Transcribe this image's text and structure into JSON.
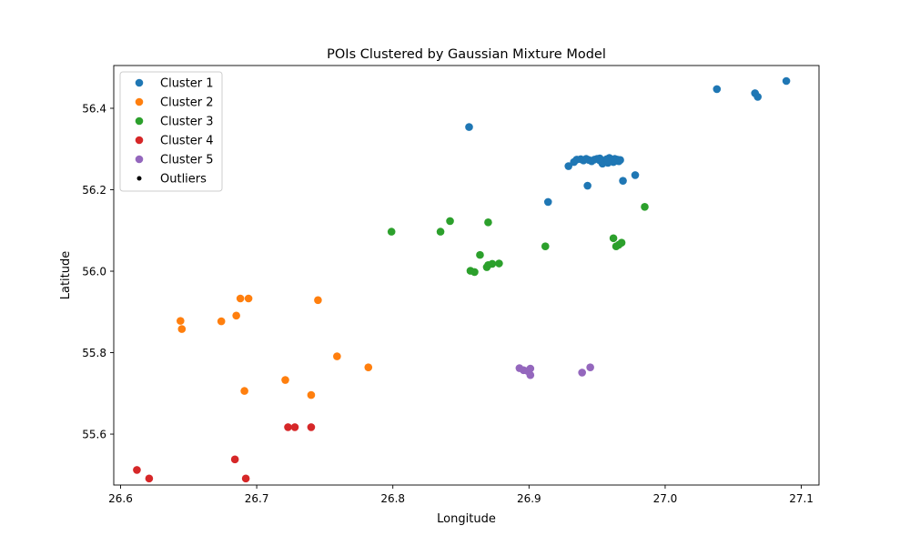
{
  "chart_data": {
    "type": "scatter",
    "title": "POIs Clustered by Gaussian Mixture Model",
    "xlabel": "Longitude",
    "ylabel": "Latitude",
    "xlim": [
      26.595,
      27.113
    ],
    "ylim": [
      55.475,
      56.505
    ],
    "xticks": [
      26.6,
      26.7,
      26.8,
      26.9,
      27.0,
      27.1
    ],
    "xtick_labels": [
      "26.6",
      "26.7",
      "26.8",
      "26.9",
      "27.0",
      "27.1"
    ],
    "yticks": [
      55.6,
      55.8,
      56.0,
      56.2,
      56.4
    ],
    "ytick_labels": [
      "55.6",
      "55.8",
      "56.0",
      "56.2",
      "56.4"
    ],
    "grid": false,
    "legend_position": "top-left",
    "series": [
      {
        "name": "Cluster 1",
        "color": "#1f77b4",
        "points": [
          [
            26.856,
            56.354
          ],
          [
            27.038,
            56.447
          ],
          [
            27.066,
            56.437
          ],
          [
            27.068,
            56.428
          ],
          [
            27.089,
            56.467
          ],
          [
            26.914,
            56.17
          ],
          [
            26.943,
            56.21
          ],
          [
            26.969,
            56.222
          ],
          [
            26.978,
            56.236
          ],
          [
            26.929,
            56.258
          ],
          [
            26.933,
            56.268
          ],
          [
            26.935,
            56.274
          ],
          [
            26.938,
            56.275
          ],
          [
            26.94,
            56.272
          ],
          [
            26.942,
            56.276
          ],
          [
            26.944,
            56.273
          ],
          [
            26.946,
            56.27
          ],
          [
            26.948,
            56.274
          ],
          [
            26.95,
            56.276
          ],
          [
            26.952,
            56.272
          ],
          [
            26.954,
            56.264
          ],
          [
            26.955,
            56.27
          ],
          [
            26.957,
            56.275
          ],
          [
            26.958,
            56.266
          ],
          [
            26.959,
            56.278
          ],
          [
            26.96,
            56.27
          ],
          [
            26.961,
            56.274
          ],
          [
            26.962,
            56.268
          ],
          [
            26.963,
            56.276
          ],
          [
            26.964,
            56.271
          ],
          [
            26.965,
            56.274
          ],
          [
            26.966,
            56.27
          ],
          [
            26.967,
            56.273
          ],
          [
            26.958,
            56.272
          ],
          [
            26.952,
            56.277
          ]
        ]
      },
      {
        "name": "Cluster 2",
        "color": "#ff7f0e",
        "points": [
          [
            26.644,
            55.878
          ],
          [
            26.645,
            55.858
          ],
          [
            26.674,
            55.877
          ],
          [
            26.685,
            55.891
          ],
          [
            26.688,
            55.933
          ],
          [
            26.694,
            55.933
          ],
          [
            26.745,
            55.929
          ],
          [
            26.759,
            55.791
          ],
          [
            26.782,
            55.764
          ],
          [
            26.691,
            55.706
          ],
          [
            26.721,
            55.733
          ],
          [
            26.74,
            55.696
          ]
        ]
      },
      {
        "name": "Cluster 3",
        "color": "#2ca02c",
        "points": [
          [
            26.799,
            56.097
          ],
          [
            26.835,
            56.097
          ],
          [
            26.842,
            56.123
          ],
          [
            26.87,
            56.12
          ],
          [
            26.864,
            56.04
          ],
          [
            26.857,
            56.001
          ],
          [
            26.86,
            55.998
          ],
          [
            26.869,
            56.01
          ],
          [
            26.87,
            56.015
          ],
          [
            26.873,
            56.018
          ],
          [
            26.878,
            56.019
          ],
          [
            26.912,
            56.061
          ],
          [
            26.962,
            56.081
          ],
          [
            26.964,
            56.061
          ],
          [
            26.966,
            56.065
          ],
          [
            26.968,
            56.07
          ],
          [
            26.985,
            56.158
          ]
        ]
      },
      {
        "name": "Cluster 4",
        "color": "#d62728",
        "points": [
          [
            26.612,
            55.512
          ],
          [
            26.621,
            55.491
          ],
          [
            26.684,
            55.538
          ],
          [
            26.692,
            55.491
          ],
          [
            26.723,
            55.617
          ],
          [
            26.728,
            55.617
          ],
          [
            26.74,
            55.617
          ]
        ]
      },
      {
        "name": "Cluster 5",
        "color": "#9467bd",
        "points": [
          [
            26.893,
            55.762
          ],
          [
            26.896,
            55.757
          ],
          [
            26.899,
            55.755
          ],
          [
            26.901,
            55.761
          ],
          [
            26.901,
            55.745
          ],
          [
            26.939,
            55.751
          ],
          [
            26.945,
            55.764
          ]
        ]
      },
      {
        "name": "Outliers",
        "color": "#000000",
        "marker": "small-dot",
        "points": []
      }
    ]
  }
}
